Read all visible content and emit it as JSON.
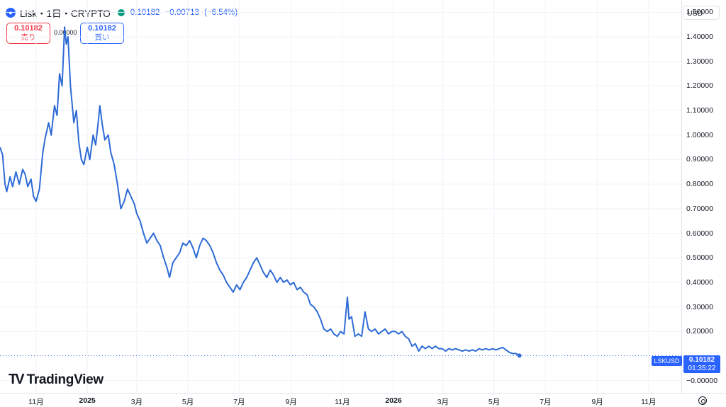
{
  "header": {
    "title": "Lisk・1日・CRYPTO",
    "last": "0.10182",
    "change": "−0.00713",
    "change_pct": "(−6.54%)"
  },
  "trade": {
    "sell_price": "0.10182",
    "sell_label": "売り",
    "spread": "0.00000",
    "buy_price": "0.10182",
    "buy_label": "買い"
  },
  "currency": "USD",
  "price_tag": {
    "symbol": "LSKUSD",
    "price": "0.10182",
    "countdown": "01:35:22"
  },
  "brand": "TradingView",
  "colors": {
    "line": "#2e6bd6",
    "accent": "#2962ff",
    "sell": "#f23645",
    "grid": "#f0f3fa"
  },
  "chart_data": {
    "type": "line",
    "title": "",
    "xlabel": "",
    "ylabel": "",
    "ylim": [
      -0.05,
      1.55
    ],
    "y_ticks": [
      "1.50000",
      "1.40000",
      "1.30000",
      "1.20000",
      "1.10000",
      "1.00000",
      "0.90000",
      "0.80000",
      "0.70000",
      "0.60000",
      "0.50000",
      "0.40000",
      "0.30000",
      "0.20000",
      "−0.00000"
    ],
    "y_tick_values": [
      1.5,
      1.4,
      1.3,
      1.2,
      1.1,
      1.0,
      0.9,
      0.8,
      0.7,
      0.6,
      0.5,
      0.4,
      0.3,
      0.2,
      0.0
    ],
    "x_ticks": [
      "11月",
      "2025",
      "3月",
      "5月",
      "7月",
      "9月",
      "11月",
      "2026",
      "3月",
      "5月",
      "7月",
      "9月",
      "11月"
    ],
    "x_tick_dates": [
      "2024-11-01",
      "2025-01-01",
      "2025-03-01",
      "2025-05-01",
      "2025-07-01",
      "2025-09-01",
      "2025-11-01",
      "2026-01-01",
      "2026-03-01",
      "2026-05-01",
      "2026-07-01",
      "2026-09-01",
      "2026-11-01"
    ],
    "bold_ticks": [
      "2025",
      "2026"
    ],
    "x_range": [
      "2024-09-19",
      "2026-12-10"
    ],
    "last_value": 0.10182,
    "series": [
      {
        "values": [
          [
            "2024-09-19",
            0.95
          ],
          [
            "2024-09-22",
            0.92
          ],
          [
            "2024-09-25",
            0.8
          ],
          [
            "2024-09-27",
            0.77
          ],
          [
            "2024-10-01",
            0.83
          ],
          [
            "2024-10-04",
            0.79
          ],
          [
            "2024-10-08",
            0.85
          ],
          [
            "2024-10-12",
            0.8
          ],
          [
            "2024-10-16",
            0.86
          ],
          [
            "2024-10-19",
            0.84
          ],
          [
            "2024-10-22",
            0.79
          ],
          [
            "2024-10-26",
            0.82
          ],
          [
            "2024-10-29",
            0.75
          ],
          [
            "2024-11-01",
            0.73
          ],
          [
            "2024-11-05",
            0.78
          ],
          [
            "2024-11-09",
            0.93
          ],
          [
            "2024-11-12",
            0.99
          ],
          [
            "2024-11-16",
            1.05
          ],
          [
            "2024-11-19",
            1.0
          ],
          [
            "2024-11-23",
            1.12
          ],
          [
            "2024-11-26",
            1.08
          ],
          [
            "2024-11-29",
            1.25
          ],
          [
            "2024-12-02",
            1.2
          ],
          [
            "2024-12-05",
            1.44
          ],
          [
            "2024-12-07",
            1.37
          ],
          [
            "2024-12-09",
            1.4
          ],
          [
            "2024-12-12",
            1.2
          ],
          [
            "2024-12-16",
            1.05
          ],
          [
            "2024-12-19",
            1.1
          ],
          [
            "2024-12-22",
            0.97
          ],
          [
            "2024-12-25",
            0.9
          ],
          [
            "2024-12-28",
            0.88
          ],
          [
            "2025-01-01",
            0.95
          ],
          [
            "2025-01-04",
            0.9
          ],
          [
            "2025-01-08",
            1.0
          ],
          [
            "2025-01-11",
            0.96
          ],
          [
            "2025-01-14",
            1.05
          ],
          [
            "2025-01-16",
            1.12
          ],
          [
            "2025-01-19",
            1.04
          ],
          [
            "2025-01-22",
            0.98
          ],
          [
            "2025-01-26",
            1.0
          ],
          [
            "2025-01-29",
            0.93
          ],
          [
            "2025-02-02",
            0.88
          ],
          [
            "2025-02-06",
            0.8
          ],
          [
            "2025-02-10",
            0.7
          ],
          [
            "2025-02-14",
            0.73
          ],
          [
            "2025-02-18",
            0.78
          ],
          [
            "2025-02-22",
            0.75
          ],
          [
            "2025-02-26",
            0.72
          ],
          [
            "2025-03-01",
            0.68
          ],
          [
            "2025-03-05",
            0.65
          ],
          [
            "2025-03-09",
            0.6
          ],
          [
            "2025-03-13",
            0.56
          ],
          [
            "2025-03-17",
            0.58
          ],
          [
            "2025-03-21",
            0.6
          ],
          [
            "2025-03-25",
            0.57
          ],
          [
            "2025-03-29",
            0.55
          ],
          [
            "2025-04-02",
            0.5
          ],
          [
            "2025-04-06",
            0.46
          ],
          [
            "2025-04-09",
            0.42
          ],
          [
            "2025-04-13",
            0.48
          ],
          [
            "2025-04-17",
            0.5
          ],
          [
            "2025-04-21",
            0.52
          ],
          [
            "2025-04-25",
            0.56
          ],
          [
            "2025-04-29",
            0.55
          ],
          [
            "2025-05-03",
            0.57
          ],
          [
            "2025-05-07",
            0.54
          ],
          [
            "2025-05-11",
            0.5
          ],
          [
            "2025-05-15",
            0.55
          ],
          [
            "2025-05-19",
            0.58
          ],
          [
            "2025-05-23",
            0.57
          ],
          [
            "2025-05-27",
            0.55
          ],
          [
            "2025-05-31",
            0.52
          ],
          [
            "2025-06-04",
            0.48
          ],
          [
            "2025-06-08",
            0.45
          ],
          [
            "2025-06-12",
            0.43
          ],
          [
            "2025-06-16",
            0.4
          ],
          [
            "2025-06-20",
            0.38
          ],
          [
            "2025-06-24",
            0.36
          ],
          [
            "2025-06-28",
            0.39
          ],
          [
            "2025-07-02",
            0.37
          ],
          [
            "2025-07-06",
            0.4
          ],
          [
            "2025-07-10",
            0.42
          ],
          [
            "2025-07-14",
            0.45
          ],
          [
            "2025-07-18",
            0.48
          ],
          [
            "2025-07-22",
            0.5
          ],
          [
            "2025-07-26",
            0.47
          ],
          [
            "2025-07-30",
            0.44
          ],
          [
            "2025-08-03",
            0.42
          ],
          [
            "2025-08-07",
            0.45
          ],
          [
            "2025-08-11",
            0.43
          ],
          [
            "2025-08-15",
            0.4
          ],
          [
            "2025-08-19",
            0.42
          ],
          [
            "2025-08-23",
            0.4
          ],
          [
            "2025-08-27",
            0.41
          ],
          [
            "2025-08-31",
            0.39
          ],
          [
            "2025-09-04",
            0.4
          ],
          [
            "2025-09-08",
            0.37
          ],
          [
            "2025-09-12",
            0.38
          ],
          [
            "2025-09-16",
            0.36
          ],
          [
            "2025-09-20",
            0.35
          ],
          [
            "2025-09-24",
            0.31
          ],
          [
            "2025-09-28",
            0.3
          ],
          [
            "2025-10-02",
            0.28
          ],
          [
            "2025-10-06",
            0.25
          ],
          [
            "2025-10-10",
            0.21
          ],
          [
            "2025-10-14",
            0.2
          ],
          [
            "2025-10-18",
            0.21
          ],
          [
            "2025-10-22",
            0.19
          ],
          [
            "2025-10-26",
            0.18
          ],
          [
            "2025-10-30",
            0.2
          ],
          [
            "2025-11-03",
            0.19
          ],
          [
            "2025-11-07",
            0.34
          ],
          [
            "2025-11-09",
            0.25
          ],
          [
            "2025-11-12",
            0.26
          ],
          [
            "2025-11-16",
            0.18
          ],
          [
            "2025-11-20",
            0.19
          ],
          [
            "2025-11-24",
            0.18
          ],
          [
            "2025-11-28",
            0.28
          ],
          [
            "2025-12-02",
            0.21
          ],
          [
            "2025-12-06",
            0.2
          ],
          [
            "2025-12-10",
            0.21
          ],
          [
            "2025-12-14",
            0.19
          ],
          [
            "2025-12-18",
            0.2
          ],
          [
            "2025-12-22",
            0.21
          ],
          [
            "2025-12-26",
            0.19
          ],
          [
            "2025-12-30",
            0.2
          ],
          [
            "2026-01-03",
            0.2
          ],
          [
            "2026-01-07",
            0.19
          ],
          [
            "2026-01-11",
            0.2
          ],
          [
            "2026-01-15",
            0.18
          ],
          [
            "2026-01-19",
            0.17
          ],
          [
            "2026-01-23",
            0.14
          ],
          [
            "2026-01-27",
            0.15
          ],
          [
            "2026-01-31",
            0.12
          ],
          [
            "2026-02-04",
            0.14
          ],
          [
            "2026-02-08",
            0.13
          ],
          [
            "2026-02-12",
            0.14
          ],
          [
            "2026-02-16",
            0.13
          ],
          [
            "2026-02-20",
            0.14
          ],
          [
            "2026-02-24",
            0.13
          ],
          [
            "2026-02-28",
            0.13
          ],
          [
            "2026-03-04",
            0.12
          ],
          [
            "2026-03-08",
            0.13
          ],
          [
            "2026-03-12",
            0.125
          ],
          [
            "2026-03-16",
            0.13
          ],
          [
            "2026-03-20",
            0.125
          ],
          [
            "2026-03-24",
            0.12
          ],
          [
            "2026-03-28",
            0.125
          ],
          [
            "2026-04-01",
            0.12
          ],
          [
            "2026-04-05",
            0.125
          ],
          [
            "2026-04-09",
            0.12
          ],
          [
            "2026-04-13",
            0.13
          ],
          [
            "2026-04-17",
            0.125
          ],
          [
            "2026-04-21",
            0.13
          ],
          [
            "2026-04-25",
            0.125
          ],
          [
            "2026-04-29",
            0.13
          ],
          [
            "2026-05-03",
            0.125
          ],
          [
            "2026-05-07",
            0.13
          ],
          [
            "2026-05-11",
            0.135
          ],
          [
            "2026-05-15",
            0.125
          ],
          [
            "2026-05-19",
            0.115
          ],
          [
            "2026-05-23",
            0.11
          ],
          [
            "2026-05-27",
            0.11
          ],
          [
            "2026-05-31",
            0.10182
          ]
        ]
      }
    ]
  }
}
